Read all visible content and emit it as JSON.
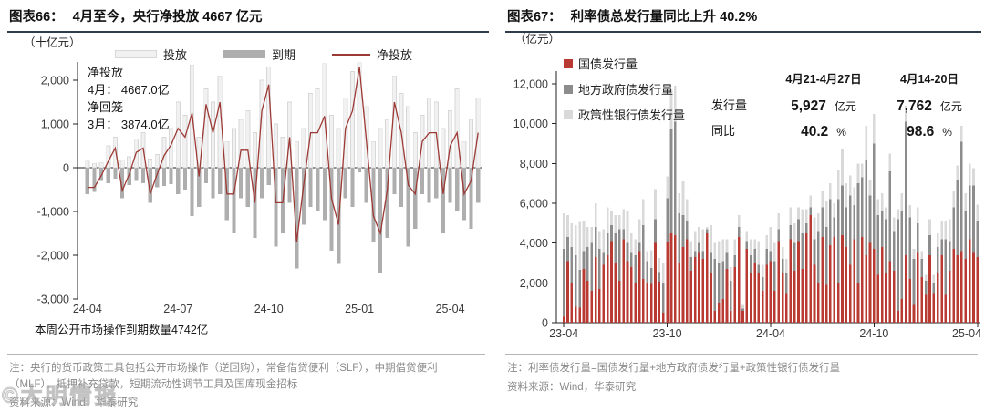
{
  "watermark": {
    "text": "©大明情报"
  },
  "left_panel": {
    "figure_label": "图表66：",
    "title": "4月至今，央行净投放 4667 亿元",
    "unit": "（十亿元）",
    "annotation": {
      "line1": "净投放",
      "line2": "4月：  4667.0亿",
      "line3": "净回笼",
      "line4": "3月：  3874.0亿"
    },
    "caption": "本周公开市场操作到期数量4742亿",
    "note": "注：央行的货币政策工具包括公开市场操作（逆回购），常备借贷便利（SLF），中期借贷便利（MLF），抵押补充贷款，短期流动性调节工具及国库现金招标",
    "source": "资料来源：Wind，华泰研究"
  },
  "right_panel": {
    "figure_label": "图表67：",
    "title": "利率债总发行量同比上升 40.2%",
    "unit": "（亿元）",
    "table": {
      "col1_header": "4月21-4月27日",
      "col2_header": "4月14-20日",
      "row1_label": "发行量",
      "row1_val1": "5,927",
      "row1_unit1": "亿元",
      "row1_val2": "7,762",
      "row1_unit2": "亿元",
      "row2_label": "同比",
      "row2_val1": "40.2",
      "row2_unit1": "%",
      "row2_val2": "98.6",
      "row2_unit2": "%"
    },
    "note": "注：利率债发行量=国债发行量+地方政府债发行量+政策性银行债发行量",
    "source": "资料来源：Wind，华泰研究"
  },
  "chart_data": [
    {
      "type": "bar",
      "subtype": "bars-with-line",
      "title": "4月至今，央行净投放4667亿元",
      "ylabel": "十亿元",
      "ylim": [
        -3000,
        2400
      ],
      "yticks": [
        -3000,
        -2000,
        -1000,
        0,
        1000,
        2000
      ],
      "x_tick_labels": [
        "24-04",
        "24-07",
        "24-10",
        "25-01",
        "25-04"
      ],
      "x_tick_indices": [
        0,
        13,
        26,
        39,
        52
      ],
      "grid": false,
      "legend_position": "top",
      "series": [
        {
          "name": "投放",
          "type": "bar",
          "color": "#f1f1f1",
          "border": "#d7d7d7",
          "values": [
            150,
            100,
            120,
            500,
            700,
            180,
            250,
            650,
            800,
            200,
            300,
            700,
            900,
            1500,
            1200,
            2350,
            700,
            1800,
            1500,
            2100,
            600,
            900,
            1100,
            1300,
            800,
            2000,
            2300,
            1000,
            700,
            1500,
            600,
            900,
            1700,
            1800,
            2380,
            1200,
            900,
            1600,
            2200,
            2400,
            1400,
            600,
            900,
            1100,
            2100,
            1700,
            1400,
            800,
            1200,
            1600,
            1500,
            900,
            1300,
            1800,
            600,
            1100,
            1600
          ]
        },
        {
          "name": "到期",
          "type": "bar",
          "color": "#aeaeae",
          "values": [
            -600,
            -550,
            -300,
            -350,
            -250,
            -700,
            -400,
            -300,
            -350,
            -800,
            -450,
            -420,
            -380,
            -600,
            -500,
            -1100,
            -900,
            -350,
            -700,
            -600,
            -1200,
            -1500,
            -700,
            -900,
            -1600,
            -700,
            -400,
            -1800,
            -1500,
            -800,
            -2300,
            -1300,
            -900,
            -1000,
            -1200,
            -1900,
            -2200,
            -700,
            -900,
            -100,
            -800,
            -1700,
            -2400,
            -1600,
            -600,
            -900,
            -1800,
            -1400,
            -600,
            -800,
            -700,
            -1500,
            -800,
            -1000,
            -1200,
            -1400,
            -800
          ]
        },
        {
          "name": "净投放",
          "type": "line",
          "color": "#9c3a36",
          "values": [
            -450,
            -450,
            -180,
            150,
            450,
            -520,
            -150,
            350,
            450,
            -600,
            -150,
            280,
            520,
            900,
            700,
            1250,
            -200,
            1450,
            800,
            1500,
            -600,
            -600,
            400,
            400,
            -800,
            1300,
            1900,
            -800,
            -800,
            700,
            -1700,
            -400,
            800,
            800,
            1180,
            -700,
            -1300,
            900,
            1300,
            2300,
            600,
            -1100,
            -1500,
            -500,
            1500,
            800,
            -400,
            -600,
            600,
            800,
            800,
            -600,
            500,
            800,
            -600,
            -300,
            800
          ]
        }
      ]
    },
    {
      "type": "bar",
      "subtype": "stacked",
      "title": "利率债总发行量同比上升40.2%",
      "ylabel": "亿元",
      "ylim": [
        0,
        12600
      ],
      "yticks": [
        0,
        2000,
        4000,
        6000,
        8000,
        10000,
        12000
      ],
      "x_tick_labels": [
        "23-04",
        "23-10",
        "24-04",
        "24-10",
        "25-04"
      ],
      "x_tick_indices": [
        0,
        26,
        52,
        78,
        104
      ],
      "grid": false,
      "legend_position": "top-left",
      "series": [
        {
          "name": "国债发行量",
          "color": "#b93a32",
          "values": [
            300,
            3100,
            2000,
            800,
            750,
            2700,
            2100,
            1600,
            3300,
            1700,
            2900,
            3400,
            4100,
            3000,
            2100,
            4200,
            3100,
            2800,
            2000,
            3600,
            2200,
            2000,
            1950,
            4000,
            2050,
            500,
            4050,
            4500,
            4400,
            3000,
            3800,
            4200,
            2600,
            3300,
            3500,
            3200,
            4500,
            2500,
            600,
            1000,
            1200,
            2700,
            600,
            2800,
            4300,
            600,
            3700,
            2500,
            3000,
            2500,
            1600,
            2900,
            3100,
            1600,
            4100,
            2500,
            1500,
            4200,
            2600,
            4100,
            2700,
            4500,
            5400,
            2900,
            2000,
            4300,
            1900,
            3900,
            4300,
            2000,
            4400,
            3800,
            2900,
            4200,
            2000,
            4300,
            3400,
            4000,
            3700,
            2400,
            3800,
            2500,
            3100,
            2600,
            600,
            1200,
            3400,
            2200,
            900,
            3500,
            2300,
            1400,
            3400,
            1500,
            2500,
            3400,
            1400,
            2600,
            3700,
            3400,
            3600,
            3200,
            4200,
            3500,
            3300
          ]
        },
        {
          "name": "地方政府债发行量",
          "color": "#8c8c8c",
          "values": [
            3400,
            1200,
            1800,
            2600,
            1900,
            900,
            1700,
            2400,
            1500,
            2000,
            600,
            1100,
            800,
            1500,
            2600,
            500,
            900,
            700,
            1400,
            400,
            2700,
            1100,
            800,
            1200,
            500,
            1500,
            2200,
            5200,
            5700,
            2500,
            1600,
            900,
            700,
            300,
            500,
            400,
            200,
            1000,
            2600,
            2000,
            1900,
            800,
            1500,
            600,
            500,
            100,
            400,
            900,
            700,
            400,
            700,
            800,
            500,
            1500,
            600,
            700,
            1000,
            700,
            1400,
            1100,
            1800,
            500,
            400,
            1300,
            2600,
            1500,
            2900,
            2300,
            1000,
            4200,
            2500,
            2000,
            3500,
            1700,
            5000,
            3000,
            4800,
            2400,
            5300,
            3000,
            1800,
            2700,
            4500,
            2000,
            4600,
            4400,
            6700,
            3100,
            2300,
            1500,
            900,
            700,
            1000,
            500,
            1300,
            800,
            2800,
            1500,
            2100,
            3800,
            5500,
            2400,
            2700,
            3400,
            1800
          ]
        },
        {
          "name": "政策性银行债发行量",
          "color": "#d9d9d9",
          "values": [
            1800,
            1100,
            1200,
            1500,
            2400,
            1500,
            1000,
            800,
            1200,
            900,
            1200,
            1300,
            700,
            900,
            700,
            1000,
            1600,
            1000,
            800,
            1200,
            1300,
            500,
            900,
            1500,
            700,
            1000,
            1100,
            2000,
            1800,
            1000,
            1700,
            1100,
            800,
            1000,
            800,
            1100,
            100,
            1400,
            800,
            1100,
            1100,
            700,
            700,
            800,
            600,
            200,
            500,
            800,
            500,
            1200,
            600,
            700,
            1200,
            900,
            800,
            600,
            700,
            900,
            1000,
            600,
            1200,
            700,
            600,
            1100,
            900,
            800,
            1300,
            800,
            700,
            1500,
            1800,
            1200,
            1000,
            900,
            1000,
            700,
            1700,
            800,
            1500,
            800,
            900,
            600,
            900,
            700,
            500,
            900,
            800,
            600,
            500,
            800,
            400,
            300,
            800,
            400,
            700,
            900,
            900,
            1100,
            800,
            700,
            800,
            900,
            1100,
            862,
            827
          ]
        }
      ]
    }
  ]
}
